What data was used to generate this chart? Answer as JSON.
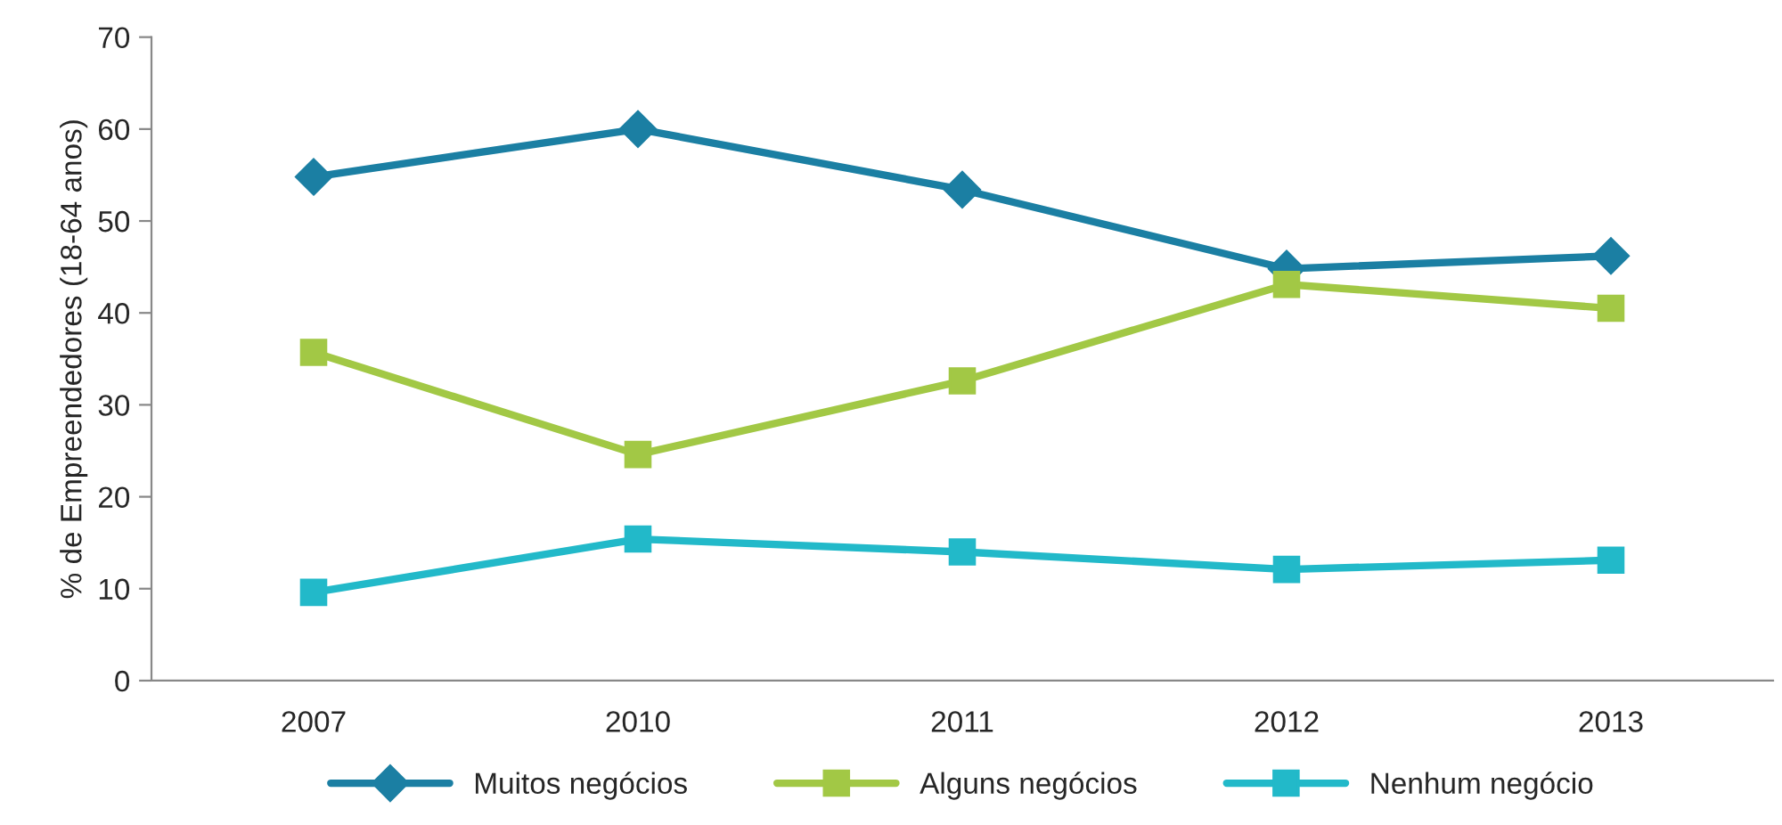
{
  "chart_data": {
    "type": "line",
    "ylabel": "% de Empreendedores (18-64 anos)",
    "categories": [
      "2007",
      "2010",
      "2011",
      "2012",
      "2013"
    ],
    "series": [
      {
        "name": "Muitos negócios",
        "color": "#1b7fa3",
        "marker": "diamond",
        "values": [
          54.8,
          60.0,
          53.4,
          44.8,
          46.2
        ]
      },
      {
        "name": "Alguns negócios",
        "color": "#a2c845",
        "marker": "square",
        "values": [
          35.7,
          24.6,
          32.6,
          43.1,
          40.5
        ]
      },
      {
        "name": "Nenhum negócio",
        "color": "#22b9c9",
        "marker": "square",
        "values": [
          9.6,
          15.4,
          14.0,
          12.1,
          13.1
        ]
      }
    ],
    "ylim": [
      0,
      70
    ],
    "yticks": [
      0,
      10,
      20,
      30,
      40,
      50,
      60,
      70
    ],
    "grid": false,
    "legend": "bottom",
    "line_style": "solid"
  }
}
